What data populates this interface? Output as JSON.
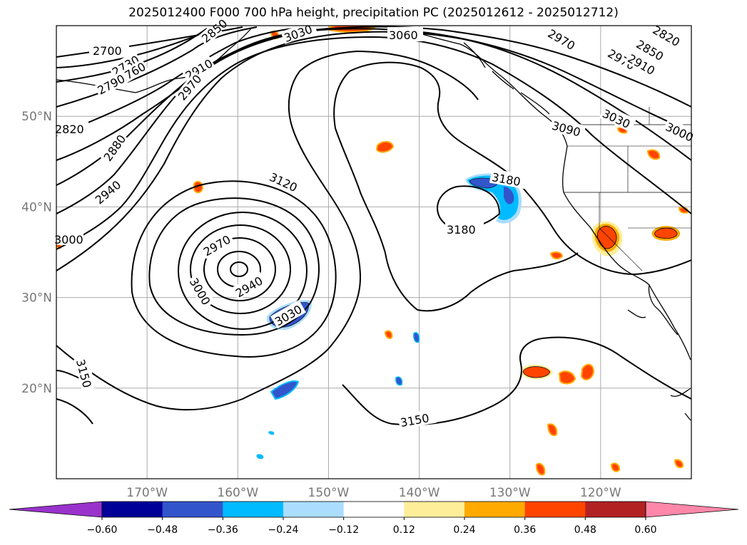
{
  "title": "2025012400 F000 700 hPa height, precipitation PC (2025012612 - 2025012712)",
  "map": {
    "projection": "PlateCarree",
    "lon_range": [
      -180,
      -110
    ],
    "lat_range": [
      10,
      60
    ],
    "lat_ticks": [
      {
        "value": 20,
        "label": "20°N"
      },
      {
        "value": 30,
        "label": "30°N"
      },
      {
        "value": 40,
        "label": "40°N"
      },
      {
        "value": 50,
        "label": "50°N"
      }
    ],
    "lon_ticks": [
      {
        "value": -170,
        "label": "170°W"
      },
      {
        "value": -160,
        "label": "160°W"
      },
      {
        "value": -150,
        "label": "150°W"
      },
      {
        "value": -140,
        "label": "140°W"
      },
      {
        "value": -130,
        "label": "130°W"
      },
      {
        "value": -120,
        "label": "120°W"
      }
    ],
    "gridlines": true,
    "contour_labels": [
      "2700",
      "2730",
      "2760",
      "2790",
      "2820",
      "2850",
      "2880",
      "2910",
      "2940",
      "2970",
      "3000",
      "3030",
      "3060",
      "3090",
      "3120",
      "3150",
      "3180",
      "2970",
      "2940",
      "3000",
      "3030",
      "3150",
      "3150",
      "3180",
      "3180",
      "3120",
      "3060",
      "2970",
      "2910",
      "2850",
      "2820",
      "3030",
      "3000",
      "2970",
      "2940",
      "2880",
      "2820",
      "2910",
      "3030",
      "3000"
    ],
    "low_center_height": "2910"
  },
  "colorbar": {
    "ticks": [
      "−0.60",
      "−0.48",
      "−0.36",
      "−0.24",
      "−0.12",
      "0.12",
      "0.24",
      "0.36",
      "0.48",
      "0.60"
    ],
    "colors": [
      "#9933cc",
      "#000099",
      "#3355cc",
      "#00bbff",
      "#aaddff",
      "#ffffff",
      "#ffee99",
      "#ffaa00",
      "#ff4400",
      "#b22222",
      "#ff88aa"
    ],
    "extend": "both"
  },
  "precip_colors": {
    "pos_low": "#ffee99",
    "pos_mid": "#ffaa00",
    "pos_high": "#ff4400",
    "neg_low": "#aaddff",
    "neg_mid": "#00bbff",
    "neg_high": "#3355cc",
    "neg_max": "#000099"
  }
}
